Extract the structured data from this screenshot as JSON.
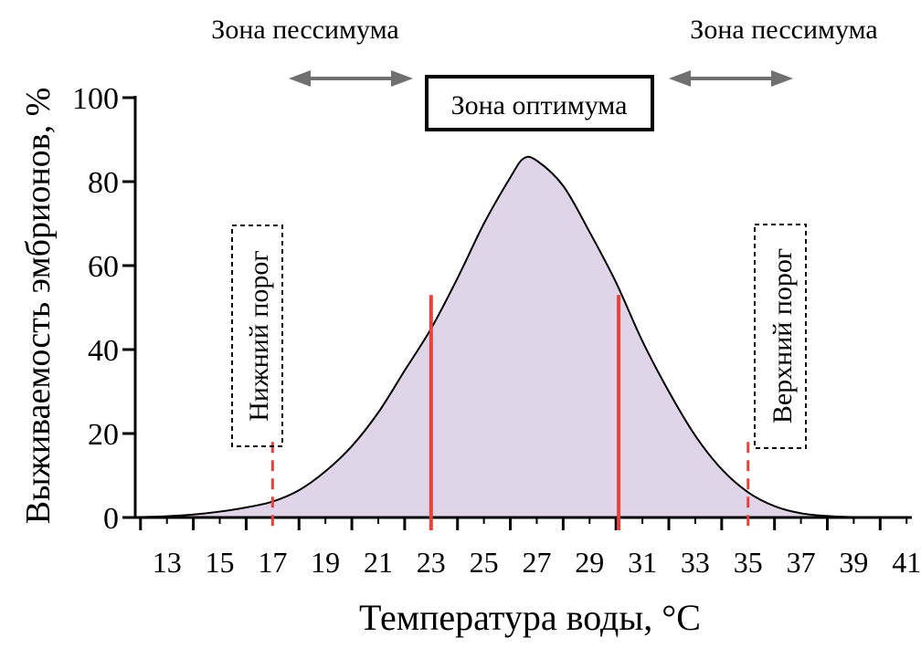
{
  "chart_data": {
    "type": "area",
    "xlabel": "Температура воды, °C",
    "ylabel": "Выживаемость эмбрионов, %",
    "xlim": [
      11.8,
      41.2
    ],
    "ylim": [
      0,
      100
    ],
    "x_ticks": [
      13,
      15,
      17,
      19,
      21,
      23,
      25,
      27,
      29,
      31,
      33,
      35,
      37,
      39,
      41
    ],
    "x_minor_ticks": [
      12,
      14,
      16,
      18,
      20,
      22,
      24,
      26,
      28,
      30,
      32,
      34,
      36,
      38,
      40
    ],
    "y_ticks": [
      0,
      20,
      40,
      60,
      80,
      100
    ],
    "curve": {
      "x": [
        12,
        13,
        14,
        15,
        16,
        17,
        18,
        19,
        20,
        21,
        22,
        23,
        24,
        25,
        26,
        26.5,
        27,
        28,
        29,
        30,
        31,
        32,
        33,
        34,
        35,
        36,
        37,
        38,
        39,
        40
      ],
      "y": [
        0.1,
        0.3,
        0.7,
        1.4,
        2.4,
        3.8,
        6.5,
        11,
        17,
        25,
        35,
        45,
        57,
        70,
        81,
        85.5,
        85,
        79,
        68,
        56,
        42,
        30,
        19.5,
        11.5,
        6,
        2.7,
        1,
        0.35,
        0.1,
        0.03
      ]
    },
    "fill_color": "#e0d5e8",
    "line_color": "#000000",
    "optimum_bounds": [
      {
        "x": 23,
        "y_top": 53,
        "color": "#e8403a"
      },
      {
        "x": 30.1,
        "y_top": 53,
        "color": "#e8403a"
      }
    ],
    "threshold_lines": [
      {
        "x": 17,
        "y_top": 18,
        "color": "#e8403a",
        "style": "dashed"
      },
      {
        "x": 35,
        "y_top": 18,
        "color": "#e8403a",
        "style": "dashed"
      }
    ],
    "annotations": {
      "pessimum_left": "Зона пессимума",
      "pessimum_right": "Зона пессимума",
      "optimum": "Зона оптимума",
      "lower_threshold": "Нижний порог",
      "upper_threshold": "Верхний порог"
    },
    "arrow_color": "#707070"
  }
}
